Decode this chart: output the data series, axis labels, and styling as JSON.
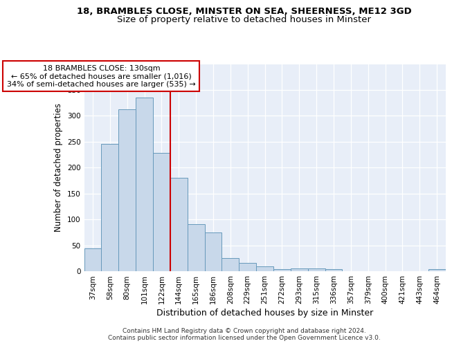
{
  "title1": "18, BRAMBLES CLOSE, MINSTER ON SEA, SHEERNESS, ME12 3GD",
  "title2": "Size of property relative to detached houses in Minster",
  "xlabel": "Distribution of detached houses by size in Minster",
  "ylabel": "Number of detached properties",
  "categories": [
    "37sqm",
    "58sqm",
    "80sqm",
    "101sqm",
    "122sqm",
    "144sqm",
    "165sqm",
    "186sqm",
    "208sqm",
    "229sqm",
    "251sqm",
    "272sqm",
    "293sqm",
    "315sqm",
    "336sqm",
    "357sqm",
    "379sqm",
    "400sqm",
    "421sqm",
    "443sqm",
    "464sqm"
  ],
  "values": [
    44,
    246,
    312,
    335,
    228,
    180,
    91,
    75,
    26,
    16,
    10,
    4,
    5,
    5,
    4,
    0,
    0,
    0,
    0,
    0,
    4
  ],
  "bar_color": "#c8d8ea",
  "bar_edge_color": "#6699bb",
  "vline_x": 4.5,
  "vline_color": "#cc0000",
  "annotation_text": "18 BRAMBLES CLOSE: 130sqm\n← 65% of detached houses are smaller (1,016)\n34% of semi-detached houses are larger (535) →",
  "annotation_box_color": "#ffffff",
  "annotation_box_edge_color": "#cc0000",
  "footer": "Contains HM Land Registry data © Crown copyright and database right 2024.\nContains public sector information licensed under the Open Government Licence v3.0.",
  "ylim": [
    0,
    400
  ],
  "yticks": [
    0,
    50,
    100,
    150,
    200,
    250,
    300,
    350,
    400
  ],
  "bg_color": "#e8eef8",
  "grid_color": "#ffffff",
  "title1_fontsize": 9.5,
  "title2_fontsize": 9.5,
  "xlabel_fontsize": 9,
  "ylabel_fontsize": 8.5,
  "tick_fontsize": 7.5,
  "footer_fontsize": 6.5,
  "ann_fontsize": 8.0
}
